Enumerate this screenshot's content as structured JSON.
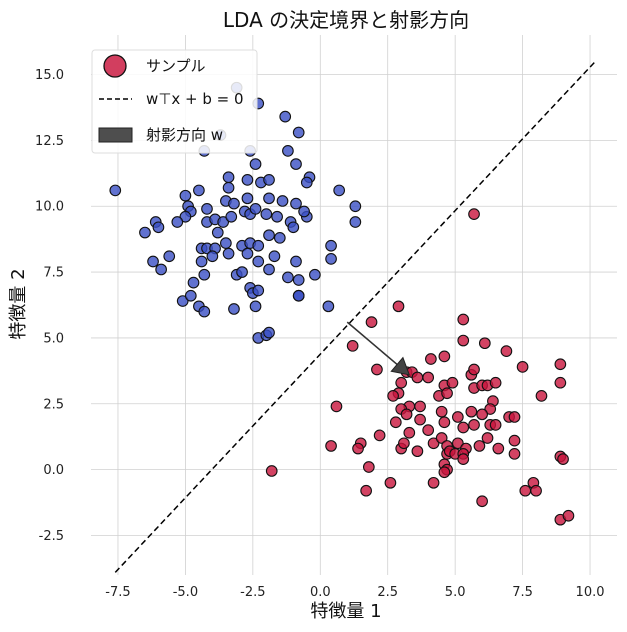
{
  "chart_data": {
    "type": "scatter",
    "title": "LDA の決定境界と射影方向",
    "xlabel": "特徴量 1",
    "ylabel": "特徴量 2",
    "xlim": [
      -8.5,
      11.0
    ],
    "ylim": [
      -4.0,
      16.5
    ],
    "xticks": [
      -7.5,
      -5.0,
      -2.5,
      0.0,
      2.5,
      5.0,
      7.5,
      10.0
    ],
    "yticks": [
      -2.5,
      0.0,
      2.5,
      5.0,
      7.5,
      10.0,
      12.5,
      15.0
    ],
    "grid": true,
    "legend_position": "top-left",
    "series": [
      {
        "name": "サンプル",
        "color": "#3a4fc4",
        "points": [
          [
            -3.1,
            14.5
          ],
          [
            -2.3,
            13.9
          ],
          [
            -4.3,
            12.1
          ],
          [
            -3.7,
            12.7
          ],
          [
            -1.3,
            13.4
          ],
          [
            -0.8,
            12.8
          ],
          [
            -2.6,
            12.1
          ],
          [
            -2.4,
            11.6
          ],
          [
            -1.2,
            12.1
          ],
          [
            -0.9,
            11.6
          ],
          [
            -7.6,
            10.6
          ],
          [
            -3.4,
            11.1
          ],
          [
            -3.4,
            10.7
          ],
          [
            -2.7,
            11.0
          ],
          [
            -2.2,
            10.9
          ],
          [
            -1.9,
            11.0
          ],
          [
            -0.4,
            11.1
          ],
          [
            -0.5,
            10.9
          ],
          [
            0.7,
            10.6
          ],
          [
            1.3,
            10.0
          ],
          [
            -5.0,
            10.4
          ],
          [
            -4.5,
            10.6
          ],
          [
            -4.2,
            9.9
          ],
          [
            -3.5,
            10.2
          ],
          [
            -3.2,
            10.1
          ],
          [
            -2.7,
            10.3
          ],
          [
            -1.9,
            10.3
          ],
          [
            -1.4,
            10.2
          ],
          [
            -0.9,
            10.1
          ],
          [
            -4.9,
            10.0
          ],
          [
            -4.8,
            9.8
          ],
          [
            -5.0,
            9.6
          ],
          [
            -5.3,
            9.4
          ],
          [
            -6.1,
            9.4
          ],
          [
            -6.0,
            9.2
          ],
          [
            -4.2,
            9.4
          ],
          [
            -3.9,
            9.5
          ],
          [
            -3.6,
            9.4
          ],
          [
            -3.3,
            9.6
          ],
          [
            -2.8,
            9.8
          ],
          [
            -2.6,
            9.7
          ],
          [
            -2.4,
            9.9
          ],
          [
            -2.0,
            9.7
          ],
          [
            -1.6,
            9.6
          ],
          [
            -1.1,
            9.4
          ],
          [
            -0.5,
            9.6
          ],
          [
            -0.6,
            9.8
          ],
          [
            1.3,
            9.4
          ],
          [
            -6.5,
            9.0
          ],
          [
            -3.8,
            9.0
          ],
          [
            -4.4,
            8.4
          ],
          [
            -4.2,
            8.4
          ],
          [
            -3.9,
            8.4
          ],
          [
            -3.5,
            8.6
          ],
          [
            -2.9,
            8.5
          ],
          [
            -2.6,
            8.6
          ],
          [
            -2.3,
            8.5
          ],
          [
            -1.9,
            8.9
          ],
          [
            -1.5,
            8.8
          ],
          [
            -1.0,
            9.2
          ],
          [
            0.4,
            8.5
          ],
          [
            -6.2,
            7.9
          ],
          [
            -5.6,
            8.1
          ],
          [
            -4.4,
            7.9
          ],
          [
            -4.0,
            8.1
          ],
          [
            -3.4,
            8.2
          ],
          [
            -2.7,
            8.2
          ],
          [
            -2.3,
            7.9
          ],
          [
            -1.7,
            8.1
          ],
          [
            -0.9,
            7.9
          ],
          [
            0.4,
            8.0
          ],
          [
            -5.9,
            7.6
          ],
          [
            -4.3,
            7.4
          ],
          [
            -3.1,
            7.4
          ],
          [
            -2.9,
            7.5
          ],
          [
            -1.9,
            7.6
          ],
          [
            -1.2,
            7.3
          ],
          [
            -0.8,
            7.2
          ],
          [
            -0.2,
            7.4
          ],
          [
            -4.7,
            7.1
          ],
          [
            -2.6,
            6.9
          ],
          [
            -2.5,
            6.7
          ],
          [
            -2.3,
            6.8
          ],
          [
            -0.8,
            6.6
          ],
          [
            -5.1,
            6.4
          ],
          [
            -4.8,
            6.6
          ],
          [
            -4.5,
            6.2
          ],
          [
            -4.3,
            6.0
          ],
          [
            -3.2,
            6.1
          ],
          [
            -2.4,
            6.2
          ],
          [
            -0.8,
            6.6
          ],
          [
            0.3,
            6.2
          ],
          [
            -2.3,
            5.0
          ],
          [
            -2.0,
            5.1
          ],
          [
            -1.9,
            5.2
          ]
        ]
      },
      {
        "color": "#c8143c",
        "points": [
          [
            5.7,
            9.7
          ],
          [
            2.9,
            6.2
          ],
          [
            5.3,
            5.7
          ],
          [
            1.9,
            5.6
          ],
          [
            1.2,
            4.7
          ],
          [
            5.3,
            4.9
          ],
          [
            6.1,
            4.8
          ],
          [
            6.9,
            4.5
          ],
          [
            4.1,
            4.2
          ],
          [
            4.6,
            4.3
          ],
          [
            2.1,
            3.8
          ],
          [
            3.2,
            3.7
          ],
          [
            3.4,
            3.7
          ],
          [
            3.6,
            3.5
          ],
          [
            4.0,
            3.5
          ],
          [
            5.6,
            3.6
          ],
          [
            5.7,
            3.8
          ],
          [
            7.5,
            3.9
          ],
          [
            8.9,
            4.0
          ],
          [
            3.0,
            3.3
          ],
          [
            4.6,
            3.2
          ],
          [
            4.9,
            3.3
          ],
          [
            5.7,
            3.1
          ],
          [
            6.0,
            3.2
          ],
          [
            6.2,
            3.2
          ],
          [
            6.5,
            3.3
          ],
          [
            8.9,
            3.3
          ],
          [
            2.9,
            2.9
          ],
          [
            2.7,
            2.8
          ],
          [
            4.4,
            2.8
          ],
          [
            4.7,
            2.9
          ],
          [
            6.4,
            2.6
          ],
          [
            6.3,
            2.3
          ],
          [
            8.2,
            2.8
          ],
          [
            3.3,
            2.4
          ],
          [
            3.0,
            2.3
          ],
          [
            3.7,
            2.4
          ],
          [
            4.5,
            2.2
          ],
          [
            5.1,
            2.0
          ],
          [
            5.6,
            2.2
          ],
          [
            6.0,
            2.1
          ],
          [
            7.0,
            2.0
          ],
          [
            7.2,
            2.0
          ],
          [
            0.6,
            2.4
          ],
          [
            3.2,
            2.1
          ],
          [
            3.7,
            1.9
          ],
          [
            4.6,
            1.8
          ],
          [
            2.8,
            1.8
          ],
          [
            5.3,
            1.6
          ],
          [
            5.7,
            1.7
          ],
          [
            6.3,
            1.7
          ],
          [
            6.5,
            1.7
          ],
          [
            3.3,
            1.4
          ],
          [
            4.0,
            1.5
          ],
          [
            6.2,
            1.2
          ],
          [
            2.2,
            1.3
          ],
          [
            1.5,
            1.0
          ],
          [
            4.2,
            1.0
          ],
          [
            4.5,
            1.2
          ],
          [
            4.7,
            0.9
          ],
          [
            5.1,
            1.0
          ],
          [
            5.4,
            0.8
          ],
          [
            5.9,
            0.9
          ],
          [
            7.2,
            1.1
          ],
          [
            0.4,
            0.9
          ],
          [
            1.4,
            0.8
          ],
          [
            3.0,
            0.8
          ],
          [
            3.1,
            1.0
          ],
          [
            3.6,
            0.7
          ],
          [
            4.7,
            0.6
          ],
          [
            4.8,
            0.7
          ],
          [
            5.0,
            0.6
          ],
          [
            5.3,
            0.6
          ],
          [
            6.6,
            0.8
          ],
          [
            7.2,
            0.6
          ],
          [
            8.9,
            0.5
          ],
          [
            9.0,
            0.4
          ],
          [
            5.3,
            0.4
          ],
          [
            4.6,
            0.2
          ],
          [
            4.7,
            0.0
          ],
          [
            4.6,
            -0.1
          ],
          [
            1.8,
            0.1
          ],
          [
            -1.8,
            -0.05
          ],
          [
            2.6,
            -0.5
          ],
          [
            4.2,
            -0.5
          ],
          [
            7.6,
            -0.8
          ],
          [
            7.9,
            -0.5
          ],
          [
            8.0,
            -0.8
          ],
          [
            1.7,
            -0.8
          ],
          [
            6.0,
            -1.2
          ],
          [
            8.9,
            -1.9
          ],
          [
            9.2,
            -1.75
          ]
        ]
      }
    ],
    "decision_boundary": {
      "label": "w⊤x + b = 0",
      "line": [
        [
          -7.6,
          -3.9
        ],
        [
          10.2,
          15.5
        ]
      ]
    },
    "projection_direction": {
      "label": "射影方向 w",
      "from": [
        1.0,
        5.6
      ],
      "to": [
        3.3,
        3.6
      ]
    },
    "legend": [
      {
        "label": "サンプル",
        "marker": "circle",
        "color": "#c8143c"
      },
      {
        "label": "w⊤x + b = 0",
        "marker": "dashed-line",
        "color": "#000000"
      },
      {
        "label": "射影方向 w",
        "marker": "rectangle",
        "color": "#444444"
      }
    ]
  }
}
